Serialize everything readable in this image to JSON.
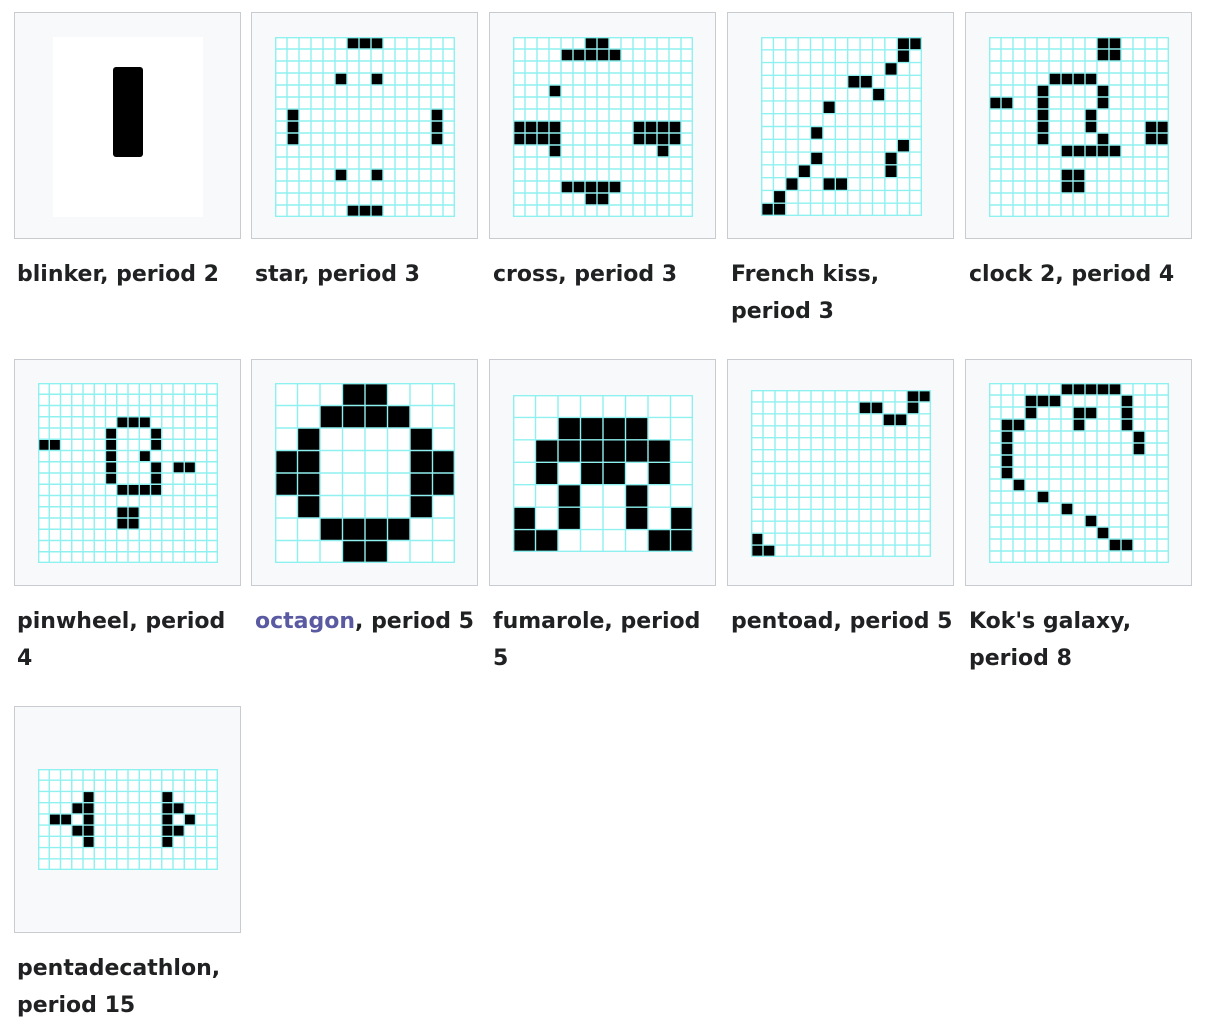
{
  "gallery": [
    {
      "caption": "blinker, period 2",
      "link": "",
      "rest": "",
      "cols": 3,
      "rows": 3,
      "cells": [
        "1",
        "1",
        "1"
      ],
      "grid": false,
      "shape": "bar"
    },
    {
      "caption": "star, period 3",
      "link": "",
      "rest": "",
      "cols": 15,
      "rows": 15,
      "cells": [
        "000000111000000",
        "000000000000000",
        "000000000000000",
        "000001001000000",
        "000000000000000",
        "000000000000000",
        "010000000000010",
        "010000000000010",
        "010000000000010",
        "000000000000000",
        "000000000000000",
        "000001001000000",
        "000000000000000",
        "000000000000000",
        "000000111000000"
      ],
      "grid": true
    },
    {
      "caption": "cross, period 3",
      "link": "",
      "rest": "",
      "cols": 15,
      "rows": 15,
      "cells": [
        "000000110000000",
        "000011111000000",
        "000000000000000",
        "000000000000000",
        "000100000000000",
        "000000000000000",
        "000000000000000",
        "111100000011110",
        "111100000011110",
        "000100000000100",
        "000000000000000",
        "000000000000000",
        "000011111000000",
        "000000110000000",
        "000000000000000"
      ],
      "grid": true
    },
    {
      "caption": "French kiss,",
      "link": "",
      "rest": "period 3",
      "cols": 13,
      "rows": 14,
      "cells": [
        "0000000000011",
        "0000000000010",
        "0000000000100",
        "0000000110000",
        "0000000001000",
        "0000010000000",
        "0000000000000",
        "0000100000000",
        "0000000000010",
        "0000100000100",
        "0001000000100",
        "0010011000000",
        "0100000000000",
        "1100000000000"
      ],
      "grid": true
    },
    {
      "caption": "clock 2, period 4",
      "link": "",
      "rest": "",
      "cols": 15,
      "rows": 15,
      "cells": [
        "000000000110000",
        "000000000110000",
        "000000000000000",
        "000001111000000",
        "000010000100000",
        "110010000100000",
        "000010001000000",
        "000010001000011",
        "000010000100011",
        "000000111110000",
        "000000000000000",
        "000000110000000",
        "000000110000000",
        "000000000000000",
        "000000000000000"
      ],
      "grid": true
    },
    {
      "caption": "pinwheel, period 4",
      "link": "",
      "rest": "",
      "cols": 16,
      "rows": 16,
      "cells": [
        "0000000000000000",
        "0000000000000000",
        "0000000000000000",
        "0000000111000000",
        "0000001000100000",
        "1100001000100000",
        "0000001001000000",
        "0000001000101100",
        "0000001000100000",
        "0000000111100000",
        "0000000000000000",
        "0000000110000000",
        "0000000110000000",
        "0000000000000000",
        "0000000000000000",
        "0000000000000000"
      ],
      "grid": true
    },
    {
      "caption": "",
      "link": "octagon",
      "rest": ", period 5",
      "cols": 8,
      "rows": 8,
      "cells": [
        "00011000",
        "00111100",
        "01000010",
        "11000011",
        "11000011",
        "01000010",
        "00111100",
        "00011000"
      ],
      "grid": true
    },
    {
      "caption": "fumarole, period 5",
      "link": "",
      "rest": "",
      "cols": 8,
      "rows": 7,
      "cells": [
        "00000000",
        "00111100",
        "01111110",
        "01011010",
        "00100100",
        "10100101",
        "11000011"
      ],
      "grid": true
    },
    {
      "caption": "pentoad, period 5",
      "link": "",
      "rest": "",
      "cols": 15,
      "rows": 14,
      "cells": [
        "000000000000011",
        "000000000110010",
        "000000000001100",
        "000000000000000",
        "000000000000000",
        "000000000000000",
        "000000000000000",
        "000000000000000",
        "000000000000000",
        "000000000000000",
        "000000000000000",
        "000000000000000",
        "100000000000000",
        "110000000000000"
      ],
      "grid": true
    },
    {
      "caption": "Kok's galaxy,",
      "link": "",
      "rest": "period 8",
      "cols": 15,
      "rows": 15,
      "cells": [
        "000000111110000",
        "000111000001000",
        "000100011001000",
        "011000010001000",
        "010000000000100",
        "010000000000100",
        "010000000000000",
        "010000000000000",
        "001000000000000",
        "000010000000000",
        "000000100000000",
        "000000001000000",
        "000000000100000",
        "000000000011000",
        "000000000000000"
      ],
      "grid": true
    },
    {
      "caption": "pentadecathlon,",
      "link": "",
      "rest": "period 15",
      "cols": 16,
      "rows": 9,
      "cells": [
        "0000000000000000",
        "0000000000000000",
        "0000100000010000",
        "0001100000011000",
        "0110100000010100",
        "0001100000011000",
        "0000100000010000",
        "0000000000000000",
        "0000000000000000"
      ],
      "grid": true
    }
  ]
}
